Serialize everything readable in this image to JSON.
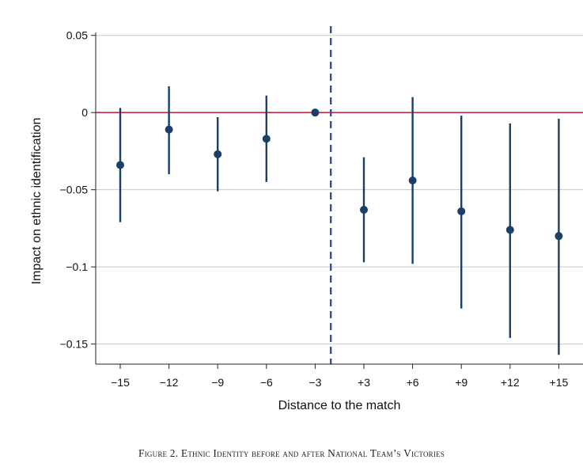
{
  "chart_data": {
    "type": "scatter",
    "subtype": "coefficient-plot-with-confidence-intervals",
    "xlabel": "Distance to the match",
    "ylabel": "Impact on ethnic identification",
    "categories": [
      "−15",
      "−12",
      "−9",
      "−6",
      "−3",
      "+3",
      "+6",
      "+9",
      "+12",
      "+15"
    ],
    "estimates": [
      -0.034,
      -0.011,
      -0.027,
      -0.017,
      0.0,
      -0.063,
      -0.044,
      -0.064,
      -0.076,
      -0.08
    ],
    "ci_lower": [
      -0.071,
      -0.04,
      -0.051,
      -0.045,
      0.0,
      -0.097,
      -0.098,
      -0.127,
      -0.146,
      -0.157
    ],
    "ci_upper": [
      0.003,
      0.017,
      -0.003,
      0.011,
      0.0,
      -0.029,
      0.01,
      -0.002,
      -0.007,
      -0.004
    ],
    "yticks": [
      0.05,
      0,
      -0.05,
      -0.1,
      -0.15
    ],
    "ytick_labels": [
      "0.05",
      "0",
      "−0.05",
      "−0.1",
      "−0.15"
    ],
    "ylim": [
      -0.163,
      0.056
    ],
    "reference_line_y": 0,
    "vertical_dashed_line": "between −3 and +3",
    "grid": "horizontal",
    "colors": {
      "points": "#1b3f66",
      "ci_lines": "#1b3f66",
      "zero_line": "#c0294a",
      "dashed_line": "#2f4fa0",
      "grid": "#c8c8c8"
    }
  },
  "caption": "Figure 2. Ethnic Identity before and after National Team’s Victories"
}
